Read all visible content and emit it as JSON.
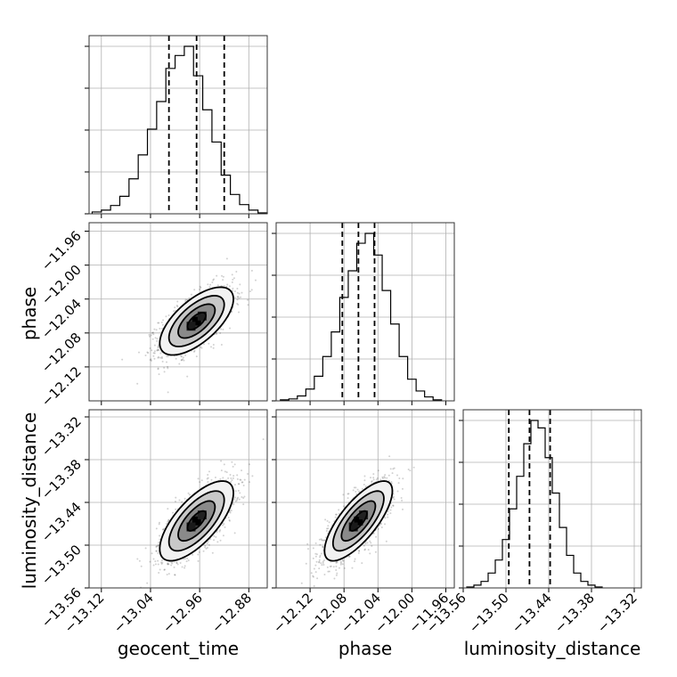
{
  "chart_data": {
    "type": "corner",
    "parameters": [
      "geocent_time",
      "phase",
      "luminosity_distance"
    ],
    "axis_labels": [
      "geocent_time",
      "phase",
      "luminosity_distance"
    ],
    "ranges": {
      "geocent_time": [
        -13.14,
        -12.85
      ],
      "phase": [
        -12.16,
        -11.95
      ],
      "luminosity_distance": [
        -13.56,
        -13.31
      ]
    },
    "ticks": {
      "geocent_time": [
        {
          "value": -13.12,
          "label": "−13.12"
        },
        {
          "value": -13.04,
          "label": "−13.04"
        },
        {
          "value": -12.96,
          "label": "−12.96"
        },
        {
          "value": -12.88,
          "label": "−12.88"
        }
      ],
      "phase": [
        {
          "value": -12.12,
          "label": "−12.12"
        },
        {
          "value": -12.08,
          "label": "−12.08"
        },
        {
          "value": -12.04,
          "label": "−12.04"
        },
        {
          "value": -12.0,
          "label": "−12.00"
        },
        {
          "value": -11.96,
          "label": "−11.96"
        }
      ],
      "luminosity_distance": [
        {
          "value": -13.56,
          "label": "−13.56"
        },
        {
          "value": -13.5,
          "label": "−13.50"
        },
        {
          "value": -13.44,
          "label": "−13.44"
        },
        {
          "value": -13.38,
          "label": "−13.38"
        },
        {
          "value": -13.32,
          "label": "−13.32"
        }
      ]
    },
    "marginals": [
      {
        "parameter": "geocent_time",
        "bin_edges": [
          -13.135,
          -13.12,
          -13.105,
          -13.09,
          -13.075,
          -13.06,
          -13.045,
          -13.03,
          -13.015,
          -13.0,
          -12.985,
          -12.97,
          -12.955,
          -12.94,
          -12.925,
          -12.91,
          -12.895,
          -12.88,
          -12.865,
          -12.85
        ],
        "counts": [
          2,
          4,
          9,
          19,
          38,
          64,
          92,
          122,
          158,
          172,
          182,
          150,
          113,
          78,
          42,
          21,
          10,
          4,
          1
        ],
        "quantiles": [
          -13.01,
          -12.965,
          -12.92
        ]
      },
      {
        "parameter": "phase",
        "bin_edges": [
          -12.155,
          -12.145,
          -12.135,
          -12.125,
          -12.115,
          -12.105,
          -12.095,
          -12.085,
          -12.075,
          -12.065,
          -12.055,
          -12.045,
          -12.035,
          -12.025,
          -12.015,
          -12.005,
          -11.995,
          -11.985,
          -11.975,
          -11.965
        ],
        "counts": [
          1,
          2,
          5,
          12,
          25,
          45,
          70,
          105,
          132,
          160,
          170,
          148,
          112,
          78,
          45,
          22,
          10,
          4,
          1
        ],
        "quantiles": [
          -12.082,
          -12.063,
          -12.044
        ]
      },
      {
        "parameter": "luminosity_distance",
        "bin_edges": [
          -13.555,
          -13.545,
          -13.535,
          -13.525,
          -13.515,
          -13.505,
          -13.495,
          -13.485,
          -13.475,
          -13.465,
          -13.455,
          -13.445,
          -13.435,
          -13.425,
          -13.415,
          -13.405,
          -13.395,
          -13.385,
          -13.375,
          -13.365
        ],
        "counts": [
          1,
          3,
          7,
          16,
          30,
          52,
          85,
          120,
          155,
          180,
          172,
          140,
          102,
          65,
          35,
          16,
          7,
          3,
          1
        ],
        "quantiles": [
          -13.496,
          -13.467,
          -13.438
        ]
      }
    ],
    "joint": [
      {
        "x": "geocent_time",
        "y": "phase",
        "center": [
          -12.965,
          -12.066
        ],
        "sigma": [
          0.03,
          0.02
        ],
        "corr": 0.65
      },
      {
        "x": "geocent_time",
        "y": "luminosity_distance",
        "center": [
          -12.965,
          -13.466
        ],
        "sigma": [
          0.03,
          0.028
        ],
        "corr": 0.7
      },
      {
        "x": "phase",
        "y": "luminosity_distance",
        "center": [
          -12.063,
          -13.466
        ],
        "sigma": [
          0.02,
          0.028
        ],
        "corr": 0.75
      }
    ],
    "contour_levels_sigma": [
      0.5,
      1.0,
      1.5,
      2.0
    ],
    "grid": true
  }
}
